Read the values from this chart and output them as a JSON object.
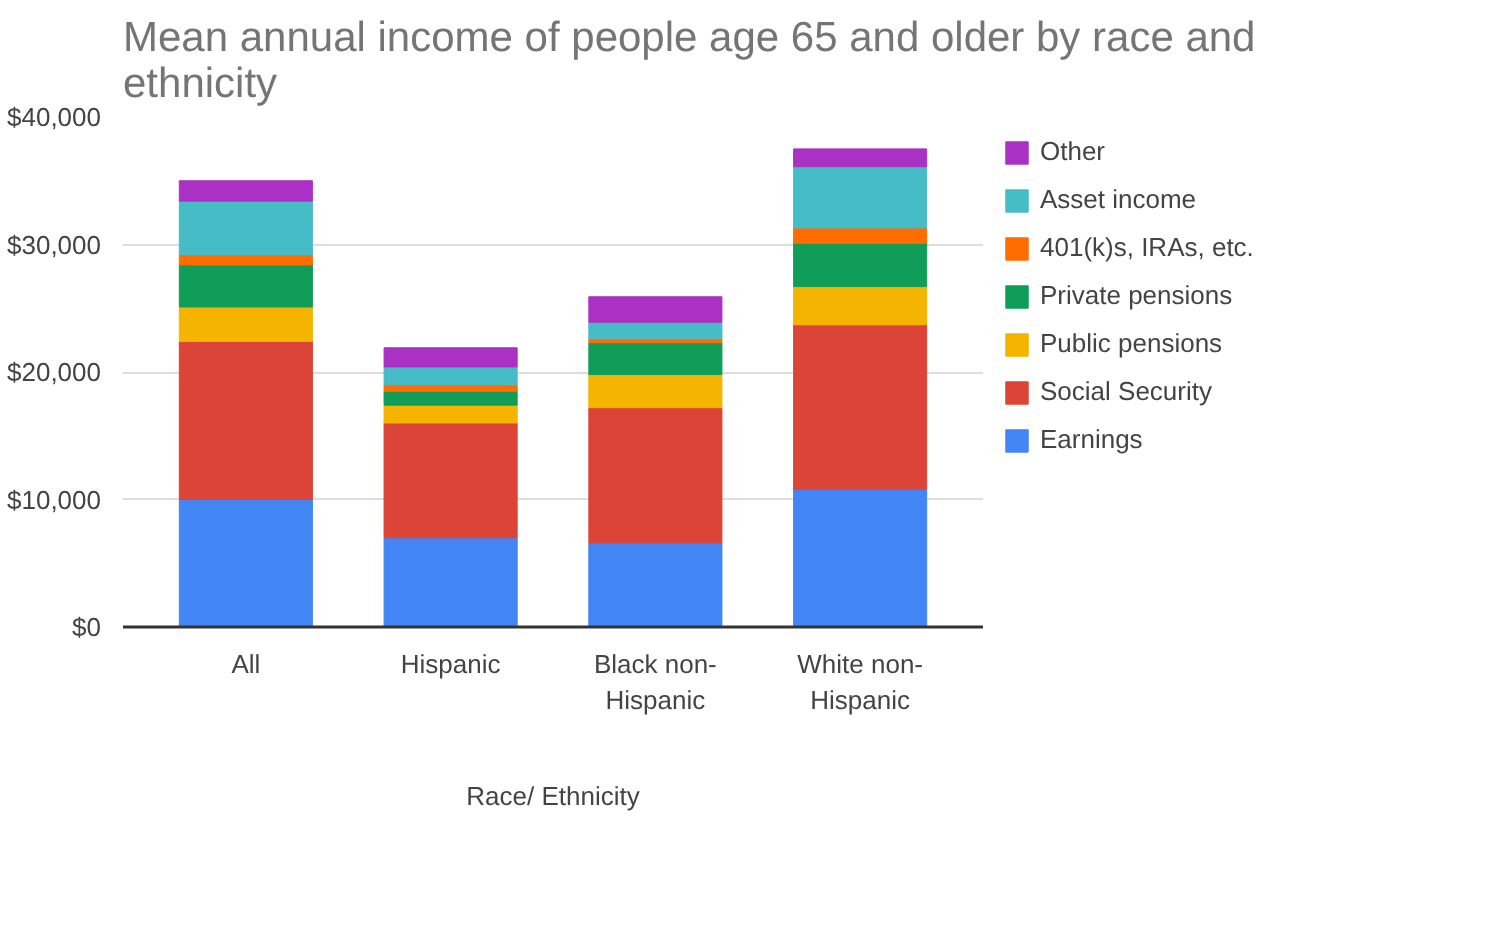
{
  "chart_data": {
    "type": "bar",
    "stacked": true,
    "title": "Mean annual income of people age 65 and older by race and ethnicity",
    "xlabel": "Race/ Ethnicity",
    "categories": [
      "All",
      "Hispanic",
      "Black non-Hispanic",
      "White non-Hispanic"
    ],
    "series": [
      {
        "name": "Earnings",
        "color": "#4285f4",
        "values": [
          10000,
          7000,
          6600,
          10800
        ]
      },
      {
        "name": "Social Security",
        "color": "#db4437",
        "values": [
          12400,
          9000,
          10600,
          12900
        ]
      },
      {
        "name": "Public pensions",
        "color": "#f4b400",
        "values": [
          2700,
          1400,
          2600,
          3000
        ]
      },
      {
        "name": "Private pensions",
        "color": "#0f9d58",
        "values": [
          3300,
          1100,
          2500,
          3400
        ]
      },
      {
        "name": "401(k)s, IRAs, etc.",
        "color": "#ff6d01",
        "values": [
          800,
          500,
          300,
          1200
        ]
      },
      {
        "name": "Asset income",
        "color": "#46bdc6",
        "values": [
          4200,
          1400,
          1300,
          4800
        ]
      },
      {
        "name": "Other",
        "color": "#ab30c4",
        "values": [
          1600,
          1500,
          2000,
          1400
        ]
      }
    ],
    "ylim": [
      0,
      40000
    ],
    "yticks": [
      {
        "value": 0,
        "label": "$0"
      },
      {
        "value": 10000,
        "label": "$10,000"
      },
      {
        "value": 20000,
        "label": "$20,000"
      },
      {
        "value": 30000,
        "label": "$30,000"
      },
      {
        "value": 40000,
        "label": "$40,000"
      }
    ],
    "grid": "y",
    "legend": "right"
  }
}
